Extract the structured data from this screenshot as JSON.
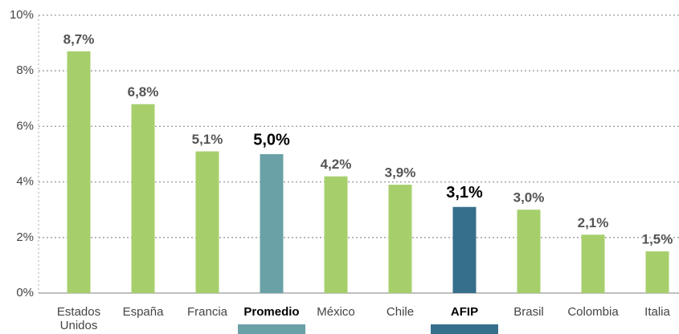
{
  "chart_data": {
    "type": "bar",
    "categories": [
      "Estados Unidos",
      "España",
      "Francia",
      "Promedio",
      "México",
      "Chile",
      "AFIP",
      "Brasil",
      "Colombia",
      "Italia"
    ],
    "values": [
      8.7,
      6.8,
      5.1,
      5.0,
      4.2,
      3.9,
      3.1,
      3.0,
      2.1,
      1.5
    ],
    "value_labels": [
      "8,7%",
      "6,8%",
      "5,1%",
      "5,0%",
      "4,2%",
      "3,9%",
      "3,1%",
      "3,0%",
      "2,1%",
      "1,5%"
    ],
    "colors": [
      "#a6cf6c",
      "#a6cf6c",
      "#a6cf6c",
      "#6aa1a6",
      "#a6cf6c",
      "#a6cf6c",
      "#356f8b",
      "#a6cf6c",
      "#a6cf6c",
      "#a6cf6c"
    ],
    "highlight": [
      false,
      false,
      false,
      true,
      false,
      false,
      true,
      false,
      false,
      false
    ],
    "ylim": [
      0,
      10
    ],
    "yticks": [
      {
        "value": 0,
        "label": "0%"
      },
      {
        "value": 2,
        "label": "2%"
      },
      {
        "value": 4,
        "label": "4%"
      },
      {
        "value": 6,
        "label": "6%"
      },
      {
        "value": 8,
        "label": "8%"
      },
      {
        "value": 10,
        "label": "10%"
      }
    ],
    "grid": true
  }
}
